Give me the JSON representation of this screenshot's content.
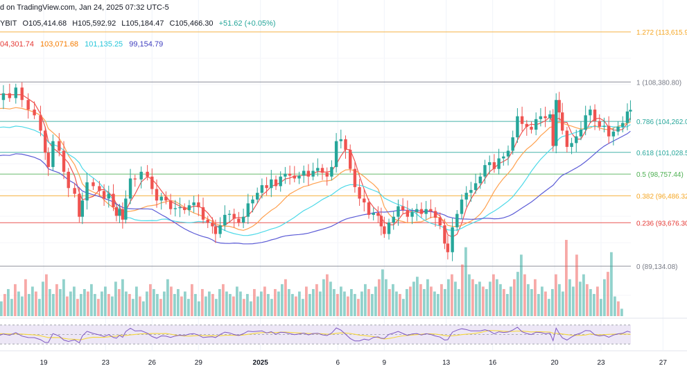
{
  "header": {
    "published": "d on TradingView.com, Jan 24, 2025 07:32 UTC-5",
    "symbol": "YBIT",
    "open": "O105,414.68",
    "high": "H105,592.92",
    "low": "L105,184.47",
    "close": "C105,466.30",
    "change": "+51.62 (+0.05%)"
  },
  "ma_values": [
    {
      "text": "04,301.74",
      "color": "#e53935"
    },
    {
      "text": "103,071.68",
      "color": "#f57c00"
    },
    {
      "text": "101,135.25",
      "color": "#26c6da"
    },
    {
      "text": "99,154.79",
      "color": "#3f3fbf"
    }
  ],
  "colors": {
    "up": "#26a69a",
    "down": "#ef5350",
    "ma_fast": "#ef5350",
    "ma_mid": "#ffa04d",
    "ma_slow": "#4dd9e8",
    "ma_long": "#5b5bd6",
    "rsi_line": "#7e57c2",
    "rsi_ma": "#f5d63b",
    "rsi_bg": "#ede7f6"
  },
  "chart_data": {
    "type": "candlestick",
    "y_range": [
      87200,
      115000
    ],
    "fib_levels": [
      {
        "ratio": "1.272",
        "value": 113615.9,
        "label": "1.272 (113,615.9",
        "color": "#f5a623"
      },
      {
        "ratio": "1",
        "value": 108380.8,
        "label": "1 (108,380.80)",
        "color": "#787b86"
      },
      {
        "ratio": "0.786",
        "value": 104262.0,
        "label": "0.786 (104,262.0",
        "color": "#26a69a"
      },
      {
        "ratio": "0.618",
        "value": 101028.5,
        "label": "0.618 (101,028.5",
        "color": "#26a69a"
      },
      {
        "ratio": "0.5",
        "value": 98757.44,
        "label": "0.5 (98,757.44)",
        "color": "#4caf50"
      },
      {
        "ratio": "0.382",
        "value": 96486.32,
        "label": "0.382 (96,486.32",
        "color": "#f5a623"
      },
      {
        "ratio": "0.236",
        "value": 93676.3,
        "label": "0.236 (93,676.30",
        "color": "#e53935"
      },
      {
        "ratio": "0",
        "value": 89134.08,
        "label": "0 (89,134.08)",
        "color": "#787b86"
      }
    ],
    "x_ticks": [
      {
        "label": "19",
        "day": 19
      },
      {
        "label": "23",
        "day": 23
      },
      {
        "label": "26",
        "day": 26
      },
      {
        "label": "29",
        "day": 29
      },
      {
        "label": "2025",
        "day": 33,
        "bold": true
      },
      {
        "label": "6",
        "day": 38
      },
      {
        "label": "9",
        "day": 41
      },
      {
        "label": "13",
        "day": 45
      },
      {
        "label": "16",
        "day": 48
      },
      {
        "label": "20",
        "day": 52
      },
      {
        "label": "23",
        "day": 55
      },
      {
        "label": "27",
        "day": 59
      }
    ],
    "x_day_range": [
      15.2,
      60.5
    ],
    "close_path": [
      [
        15.2,
        106900
      ],
      [
        15.6,
        107800
      ],
      [
        16.0,
        106500
      ],
      [
        16.4,
        107200
      ],
      [
        16.8,
        106700
      ],
      [
        17.2,
        107800
      ],
      [
        17.6,
        106500
      ],
      [
        18.0,
        105500
      ],
      [
        18.4,
        104900
      ],
      [
        18.8,
        103300
      ],
      [
        19.1,
        101000
      ],
      [
        19.3,
        99500
      ],
      [
        19.6,
        102200
      ],
      [
        20.0,
        101200
      ],
      [
        20.3,
        99000
      ],
      [
        20.6,
        97300
      ],
      [
        21.0,
        96700
      ],
      [
        21.3,
        94300
      ],
      [
        21.5,
        96000
      ],
      [
        21.8,
        97900
      ],
      [
        22.2,
        97500
      ],
      [
        22.6,
        97000
      ],
      [
        22.9,
        96200
      ],
      [
        23.2,
        96700
      ],
      [
        23.5,
        95300
      ],
      [
        23.7,
        94400
      ],
      [
        23.9,
        95100
      ],
      [
        24.1,
        94000
      ],
      [
        24.3,
        96200
      ],
      [
        24.6,
        98300
      ],
      [
        24.9,
        98200
      ],
      [
        25.3,
        99000
      ],
      [
        25.7,
        98500
      ],
      [
        26.0,
        97200
      ],
      [
        26.3,
        96000
      ],
      [
        26.6,
        96400
      ],
      [
        26.9,
        96000
      ],
      [
        27.2,
        95100
      ],
      [
        27.5,
        95200
      ],
      [
        27.8,
        95300
      ],
      [
        28.1,
        95000
      ],
      [
        28.4,
        95500
      ],
      [
        28.7,
        95800
      ],
      [
        29.0,
        95300
      ],
      [
        29.3,
        94000
      ],
      [
        29.6,
        93700
      ],
      [
        29.9,
        93300
      ],
      [
        30.1,
        92500
      ],
      [
        30.4,
        93400
      ],
      [
        30.7,
        94500
      ],
      [
        31.0,
        94600
      ],
      [
        31.3,
        94100
      ],
      [
        31.6,
        93700
      ],
      [
        31.9,
        94300
      ],
      [
        32.2,
        95700
      ],
      [
        32.5,
        96100
      ],
      [
        32.8,
        96800
      ],
      [
        33.1,
        97600
      ],
      [
        33.4,
        97300
      ],
      [
        33.7,
        98200
      ],
      [
        34.0,
        97500
      ],
      [
        34.3,
        98500
      ],
      [
        34.6,
        98800
      ],
      [
        34.9,
        98600
      ],
      [
        35.2,
        98300
      ],
      [
        35.5,
        98600
      ],
      [
        35.8,
        99100
      ],
      [
        36.1,
        98500
      ],
      [
        36.4,
        99100
      ],
      [
        36.7,
        99400
      ],
      [
        37.0,
        98900
      ],
      [
        37.3,
        98500
      ],
      [
        37.6,
        99500
      ],
      [
        37.9,
        102200
      ],
      [
        38.2,
        102400
      ],
      [
        38.5,
        101300
      ],
      [
        38.8,
        99300
      ],
      [
        39.1,
        97400
      ],
      [
        39.4,
        96200
      ],
      [
        39.7,
        95800
      ],
      [
        40.0,
        94500
      ],
      [
        40.3,
        94700
      ],
      [
        40.6,
        94400
      ],
      [
        40.8,
        93300
      ],
      [
        41.0,
        92500
      ],
      [
        41.3,
        93700
      ],
      [
        41.6,
        94300
      ],
      [
        41.9,
        95400
      ],
      [
        42.2,
        95000
      ],
      [
        42.5,
        94300
      ],
      [
        42.8,
        94800
      ],
      [
        43.1,
        95100
      ],
      [
        43.4,
        94600
      ],
      [
        43.7,
        95100
      ],
      [
        44.0,
        94900
      ],
      [
        44.3,
        94200
      ],
      [
        44.6,
        93400
      ],
      [
        44.9,
        91500
      ],
      [
        45.1,
        90600
      ],
      [
        45.4,
        93200
      ],
      [
        45.7,
        94600
      ],
      [
        46.0,
        96100
      ],
      [
        46.3,
        96800
      ],
      [
        46.6,
        97100
      ],
      [
        46.9,
        97800
      ],
      [
        47.2,
        98500
      ],
      [
        47.5,
        99700
      ],
      [
        47.8,
        100000
      ],
      [
        48.1,
        99300
      ],
      [
        48.4,
        100400
      ],
      [
        48.7,
        100600
      ],
      [
        49.0,
        101200
      ],
      [
        49.3,
        102600
      ],
      [
        49.6,
        104800
      ],
      [
        49.9,
        104000
      ],
      [
        50.2,
        103700
      ],
      [
        50.5,
        103400
      ],
      [
        50.8,
        104500
      ],
      [
        51.1,
        104800
      ],
      [
        51.4,
        104600
      ],
      [
        51.7,
        105000
      ],
      [
        51.9,
        101700
      ],
      [
        52.1,
        106500
      ],
      [
        52.3,
        105200
      ],
      [
        52.5,
        103300
      ],
      [
        52.8,
        101600
      ],
      [
        53.1,
        102000
      ],
      [
        53.4,
        102700
      ],
      [
        53.7,
        103400
      ],
      [
        54.0,
        104900
      ],
      [
        54.3,
        105500
      ],
      [
        54.6,
        104300
      ],
      [
        54.9,
        103700
      ],
      [
        55.2,
        103800
      ],
      [
        55.5,
        102700
      ],
      [
        55.8,
        103200
      ],
      [
        56.1,
        103700
      ],
      [
        56.4,
        104100
      ],
      [
        56.7,
        105300
      ],
      [
        56.9,
        105466
      ]
    ],
    "volume": [
      12,
      18,
      22,
      14,
      26,
      20,
      16,
      30,
      18,
      24,
      20,
      14,
      28,
      34,
      22,
      18,
      26,
      22,
      30,
      16,
      20,
      24,
      14,
      18,
      22,
      20,
      26,
      18,
      14,
      20,
      24,
      18,
      16,
      28,
      22,
      30,
      20,
      18,
      14,
      24,
      16,
      12,
      20,
      26,
      22,
      18,
      14,
      20,
      30,
      24,
      18,
      22,
      16,
      20,
      14,
      26,
      18,
      12,
      22,
      16,
      20,
      18,
      14,
      22,
      26,
      20,
      18,
      16,
      24,
      20,
      14,
      18,
      12,
      22,
      16,
      20,
      24,
      18,
      14,
      22,
      20,
      26,
      30,
      22,
      18,
      16,
      20,
      14,
      24,
      18,
      22,
      26,
      20,
      30,
      34,
      28,
      22,
      18,
      24,
      20,
      16,
      22,
      18,
      14,
      20,
      26,
      22,
      18,
      24,
      30,
      38,
      30,
      22,
      26,
      20,
      18,
      14,
      22,
      24,
      28,
      32,
      26,
      22,
      30,
      24,
      20,
      18,
      26,
      22,
      30,
      34,
      28,
      22,
      42,
      56,
      34,
      30,
      26,
      28,
      24,
      22,
      28,
      34,
      30,
      26,
      22,
      18,
      24,
      30,
      36,
      50,
      34,
      26,
      22,
      30,
      18,
      24,
      20,
      14,
      22,
      34,
      26,
      20,
      62,
      30,
      24,
      50,
      28,
      34,
      26,
      22,
      18,
      24,
      14,
      30,
      36,
      52,
      16,
      12,
      6
    ],
    "rsi_range": [
      20,
      80
    ],
    "rsi_bands": [
      30,
      70
    ]
  }
}
